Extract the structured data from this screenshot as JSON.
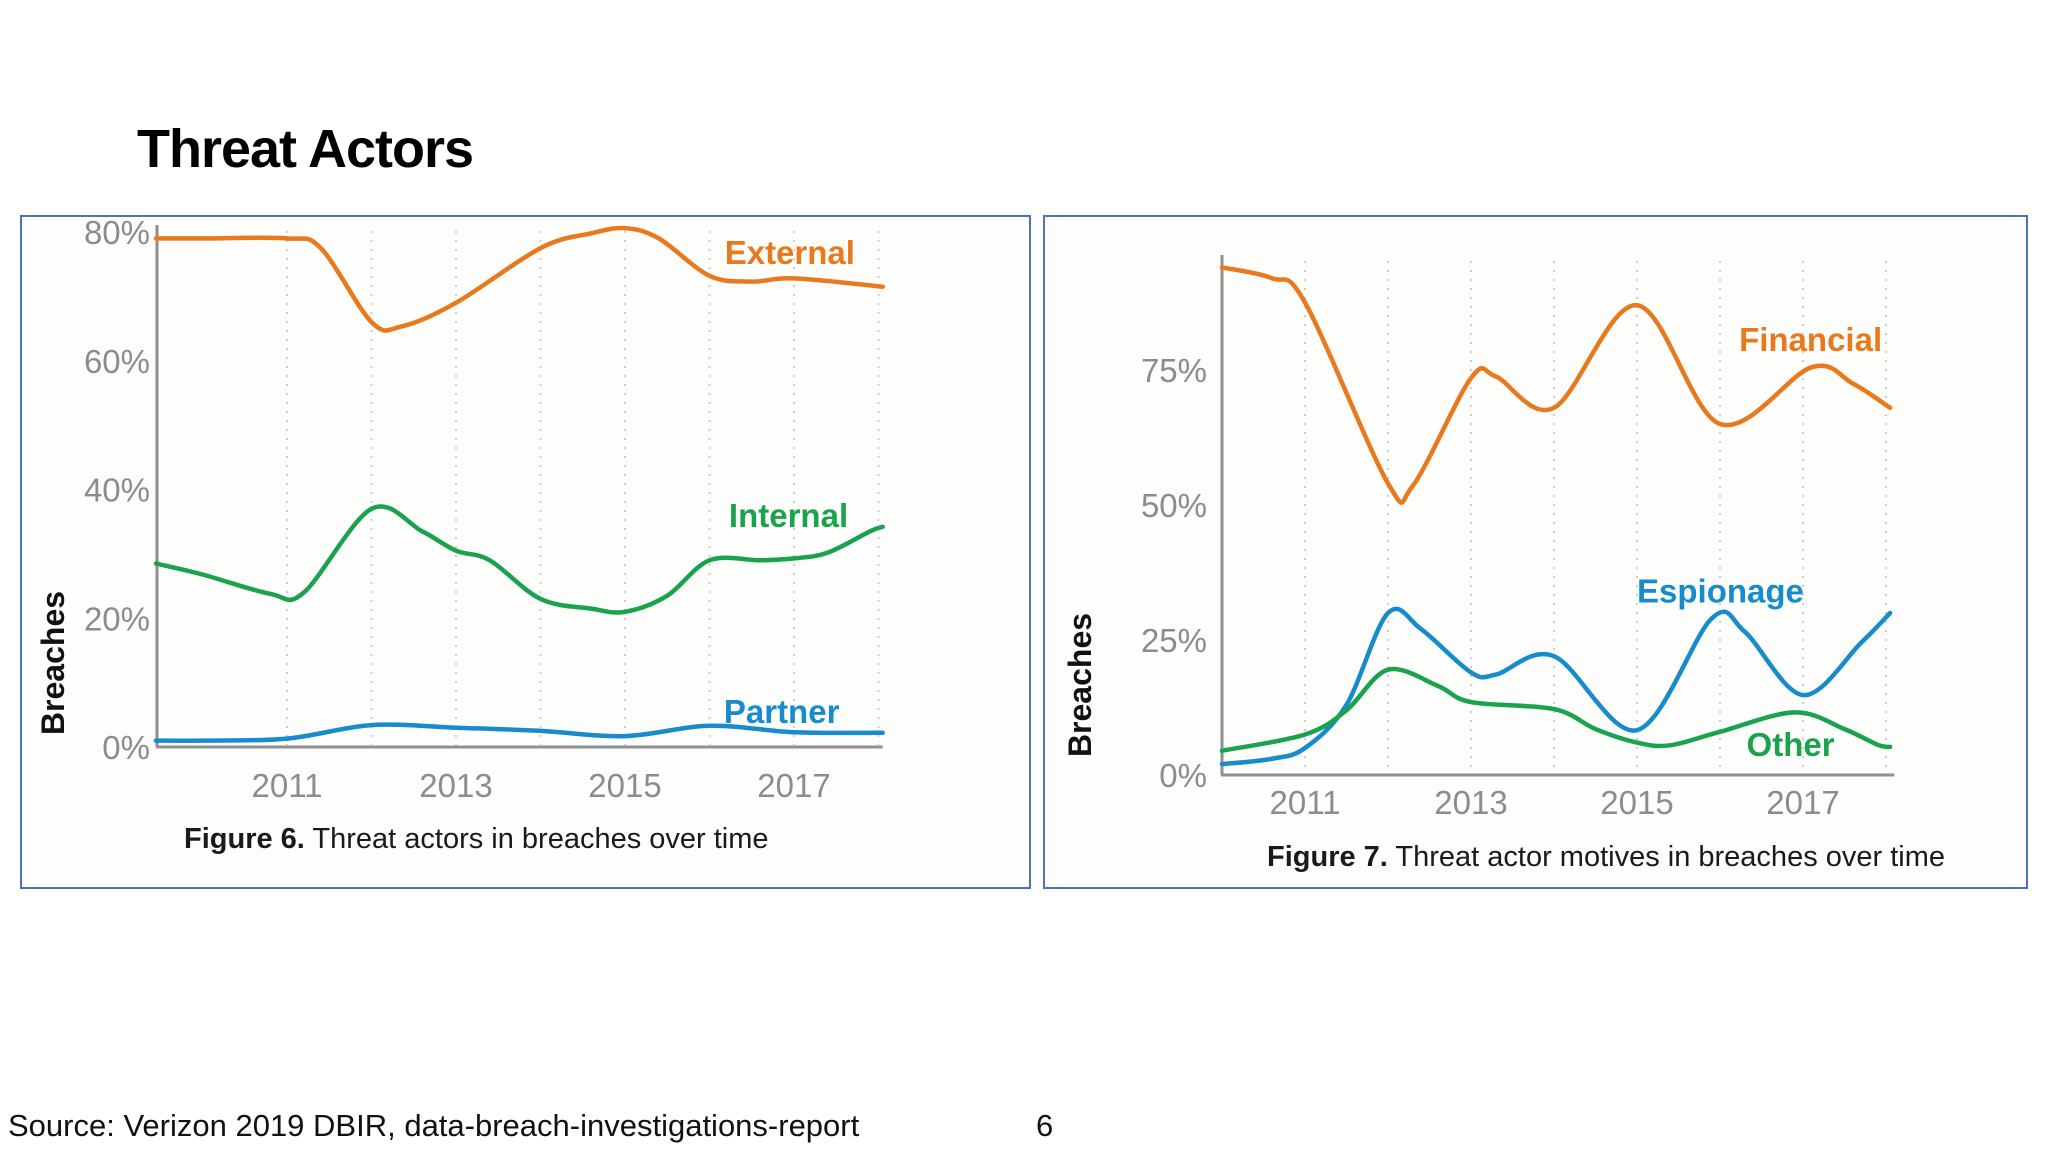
{
  "slide": {
    "title": "Threat Actors",
    "source": "Source: Verizon 2019 DBIR, data-breach-investigations-report",
    "page_number": "6"
  },
  "colors": {
    "orange": "#e8791d",
    "green": "#1aa24c",
    "blue": "#178bcb",
    "axis_text": "#8c8c8c",
    "axis_line": "#909090",
    "gridline": "#cccccc",
    "card_border": "#4c74b9",
    "ylabel_text": "#111111",
    "caption_text": "#1a1a1a"
  },
  "chart_data": [
    {
      "type": "line",
      "caption_bold": "Figure 6.",
      "caption_text": " Threat actors in breaches over time",
      "ylabel": "Breaches",
      "xlim": [
        2009.45,
        2018.05
      ],
      "ylim": [
        0,
        83
      ],
      "grid_on": true,
      "grid_years": [
        2011,
        2012,
        2013,
        2014,
        2015,
        2016,
        2017,
        2018
      ],
      "x_ticks": [
        {
          "v": 2011,
          "label": "2011"
        },
        {
          "v": 2013,
          "label": "2013"
        },
        {
          "v": 2015,
          "label": "2015"
        },
        {
          "v": 2017,
          "label": "2017"
        }
      ],
      "y_ticks": [
        {
          "v": 0,
          "label": "0%"
        },
        {
          "v": 20,
          "label": "20%"
        },
        {
          "v": 40,
          "label": "40%"
        },
        {
          "v": 60,
          "label": "60%"
        },
        {
          "v": 80,
          "label": "80%"
        }
      ],
      "series": [
        {
          "name": "External",
          "color": "#e8791d",
          "label_pos": {
            "x": 2016.18,
            "y": 75
          },
          "points": [
            [
              2009.45,
              79
            ],
            [
              2010,
              79
            ],
            [
              2011,
              79
            ],
            [
              2011.4,
              77.5
            ],
            [
              2012,
              66
            ],
            [
              2012.35,
              65.3
            ],
            [
              2013,
              69
            ],
            [
              2014,
              77.5
            ],
            [
              2014.6,
              79.8
            ],
            [
              2015,
              80.6
            ],
            [
              2015.4,
              79
            ],
            [
              2016,
              73.2
            ],
            [
              2016.5,
              72.3
            ],
            [
              2017,
              72.8
            ],
            [
              2018.05,
              71.5
            ]
          ]
        },
        {
          "name": "Internal",
          "color": "#1aa24c",
          "label_pos": {
            "x": 2016.23,
            "y": 34.2
          },
          "points": [
            [
              2009.45,
              28.5
            ],
            [
              2010,
              26.8
            ],
            [
              2010.8,
              23.8
            ],
            [
              2011.2,
              24
            ],
            [
              2012,
              37
            ],
            [
              2012.6,
              33.5
            ],
            [
              2013,
              30.5
            ],
            [
              2013.4,
              29
            ],
            [
              2014,
              23
            ],
            [
              2014.6,
              21.5
            ],
            [
              2015,
              21
            ],
            [
              2015.5,
              23.5
            ],
            [
              2016,
              29
            ],
            [
              2016.6,
              29
            ],
            [
              2017,
              29.3
            ],
            [
              2017.4,
              30.2
            ],
            [
              2017.9,
              33.5
            ],
            [
              2018.05,
              34.2
            ]
          ]
        },
        {
          "name": "Partner",
          "color": "#178bcb",
          "label_pos": {
            "x": 2016.17,
            "y": 3.7
          },
          "points": [
            [
              2009.45,
              1
            ],
            [
              2010,
              1
            ],
            [
              2011,
              1.3
            ],
            [
              2012,
              3.4
            ],
            [
              2013,
              3
            ],
            [
              2014,
              2.5
            ],
            [
              2015,
              1.7
            ],
            [
              2016,
              3.3
            ],
            [
              2017,
              2.3
            ],
            [
              2018.05,
              2.2
            ]
          ]
        }
      ]
    },
    {
      "type": "line",
      "caption_bold": "Figure 7.",
      "caption_text": " Threat actor motives in breaches over time",
      "ylabel": "Breaches",
      "xlim": [
        2010,
        2018.1
      ],
      "ylim": [
        0,
        96
      ],
      "grid_on": true,
      "grid_years": [
        2011,
        2012,
        2013,
        2014,
        2015,
        2016,
        2017,
        2018
      ],
      "x_ticks": [
        {
          "v": 2011,
          "label": "2011"
        },
        {
          "v": 2013,
          "label": "2013"
        },
        {
          "v": 2015,
          "label": "2015"
        },
        {
          "v": 2017,
          "label": "2017"
        }
      ],
      "y_ticks": [
        {
          "v": 0,
          "label": "0%"
        },
        {
          "v": 25,
          "label": "25%"
        },
        {
          "v": 50,
          "label": "50%"
        },
        {
          "v": 75,
          "label": "75%"
        }
      ],
      "series": [
        {
          "name": "Financial",
          "color": "#e8791d",
          "label_pos": {
            "x": 2016.23,
            "y": 78.5
          },
          "points": [
            [
              2010,
              94
            ],
            [
              2010.6,
              92
            ],
            [
              2011,
              87.5
            ],
            [
              2012,
              54
            ],
            [
              2012.3,
              53.6
            ],
            [
              2013,
              73.5
            ],
            [
              2013.3,
              73.8
            ],
            [
              2014,
              68
            ],
            [
              2015,
              87
            ],
            [
              2016,
              65
            ],
            [
              2017.1,
              75.5
            ],
            [
              2017.6,
              72.5
            ],
            [
              2018.05,
              68
            ]
          ]
        },
        {
          "name": "Espionage",
          "color": "#178bcb",
          "label_pos": {
            "x": 2015.0,
            "y": 31.9
          },
          "points": [
            [
              2010,
              2
            ],
            [
              2010.6,
              3
            ],
            [
              2011,
              5
            ],
            [
              2011.5,
              13
            ],
            [
              2012,
              30
            ],
            [
              2012.4,
              27
            ],
            [
              2013,
              19
            ],
            [
              2013.3,
              18.6
            ],
            [
              2014,
              22
            ],
            [
              2015,
              8.3
            ],
            [
              2015.9,
              29
            ],
            [
              2016.3,
              26.5
            ],
            [
              2017,
              14.8
            ],
            [
              2017.7,
              24.5
            ],
            [
              2018.05,
              30
            ]
          ]
        },
        {
          "name": "Other",
          "color": "#1aa24c",
          "label_pos": {
            "x": 2016.32,
            "y": 3.5
          },
          "points": [
            [
              2010,
              4.5
            ],
            [
              2011,
              7.5
            ],
            [
              2011.5,
              12
            ],
            [
              2012,
              19.5
            ],
            [
              2012.6,
              16.5
            ],
            [
              2013,
              13.5
            ],
            [
              2014,
              12.2
            ],
            [
              2014.5,
              8.5
            ],
            [
              2015,
              6
            ],
            [
              2015.4,
              5.5
            ],
            [
              2016,
              8
            ],
            [
              2016.9,
              11.6
            ],
            [
              2017.5,
              8.5
            ],
            [
              2017.9,
              5.6
            ],
            [
              2018.05,
              5.2
            ]
          ]
        }
      ]
    }
  ]
}
